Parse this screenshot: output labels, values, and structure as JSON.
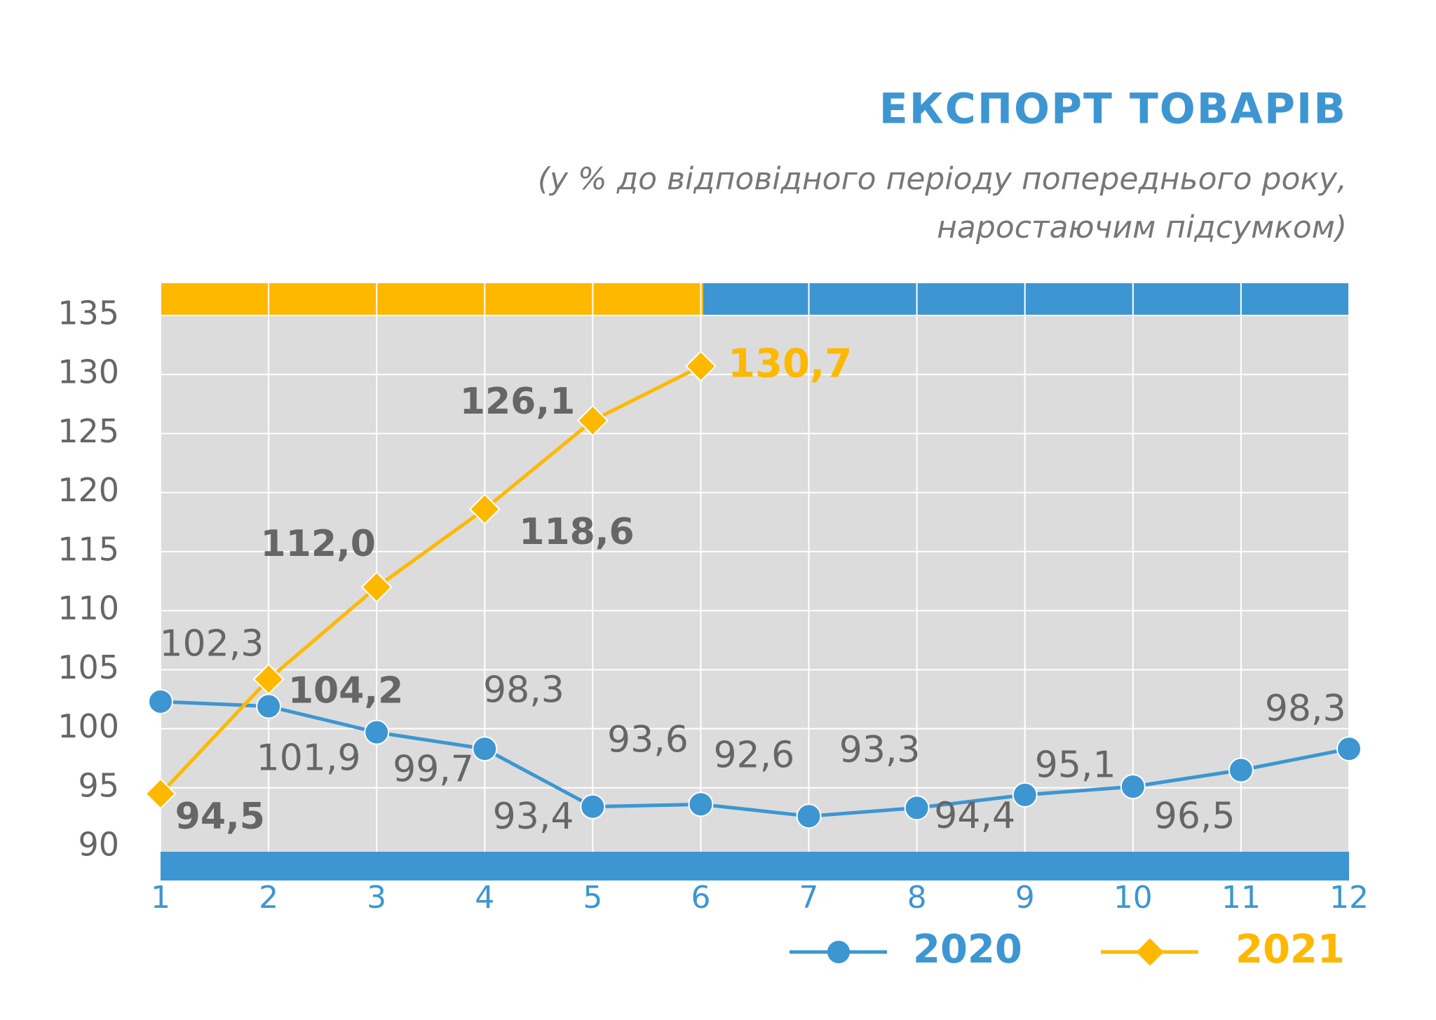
{
  "chart_data": {
    "type": "line",
    "title": "ЕКСПОРТ ТОВАРІВ",
    "subtitle": [
      "(у % до відповідного періоду попереднього року,",
      "наростаючим підсумком)"
    ],
    "categories": [
      "1",
      "2",
      "3",
      "4",
      "5",
      "6",
      "7",
      "8",
      "9",
      "10",
      "11",
      "12"
    ],
    "series": [
      {
        "name": "2020",
        "color": "#3d96d2",
        "marker": "circle",
        "values": [
          102.3,
          101.9,
          99.7,
          98.3,
          93.4,
          93.6,
          92.6,
          93.3,
          94.4,
          95.1,
          96.5,
          98.3
        ],
        "value_labels": [
          "102,3",
          "101,9",
          "99,7",
          "98,3",
          "93,4",
          "93,6",
          "92,6",
          "93,3",
          "94,4",
          "95,1",
          "96,5",
          "98,3"
        ]
      },
      {
        "name": "2021",
        "color": "#ffb800",
        "marker": "diamond",
        "values": [
          94.5,
          104.2,
          112.0,
          118.6,
          126.1,
          130.7,
          null,
          null,
          null,
          null,
          null,
          null
        ],
        "value_labels": [
          "94,5",
          "104,2",
          "112,0",
          "118,6",
          "126,1",
          "130,7",
          null,
          null,
          null,
          null,
          null,
          null
        ]
      }
    ],
    "ylim": [
      90,
      135
    ],
    "yticks": [
      90,
      95,
      100,
      105,
      110,
      115,
      120,
      125,
      130,
      135
    ],
    "grid": true
  }
}
